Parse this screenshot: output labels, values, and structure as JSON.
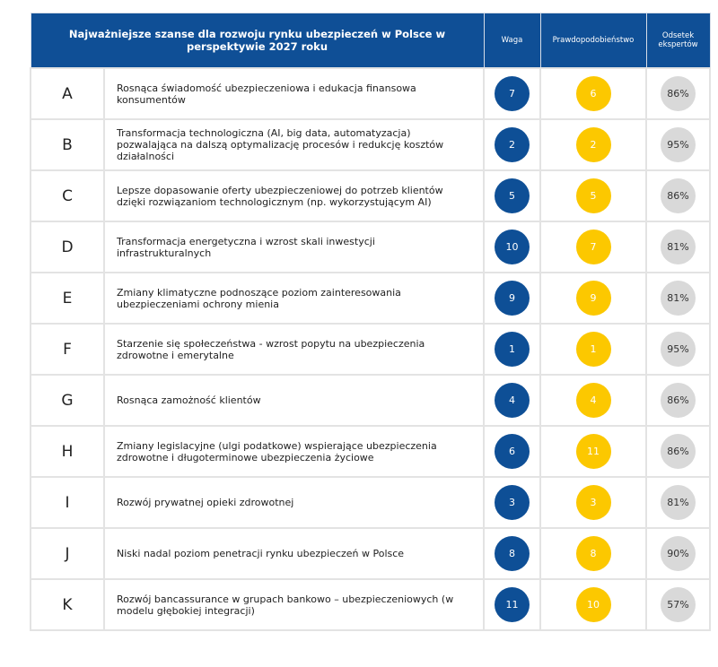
{
  "header": {
    "title": "Najważniejsze szanse dla rozwoju rynku ubezpieczeń w Polsce w perspektywie 2027 roku",
    "waga": "Waga",
    "prob": "Prawdopodobieństwo",
    "odsetek": "Odsetek ekspertów"
  },
  "colors": {
    "header": "#0f4f96",
    "waga": "#0e4f96",
    "prob": "#fcc800",
    "odsetek": "#d9d9d9"
  },
  "rows": [
    {
      "letter": "A",
      "text": "Rosnąca świadomość ubezpieczeniowa i edukacja finansowa konsumentów",
      "waga": "7",
      "prob": "6",
      "pct": "86%"
    },
    {
      "letter": "B",
      "text": "Transformacja technologiczna (AI, big data, automatyzacja) pozwalająca na dalszą optymalizację procesów i redukcję kosztów działalności",
      "waga": "2",
      "prob": "2",
      "pct": "95%"
    },
    {
      "letter": "C",
      "text": "Lepsze dopasowanie oferty ubezpieczeniowej do potrzeb klientów dzięki rozwiązaniom technologicznym (np. wykorzystującym AI)",
      "waga": "5",
      "prob": "5",
      "pct": "86%"
    },
    {
      "letter": "D",
      "text": "Transformacja energetyczna i wzrost skali inwestycji infrastrukturalnych",
      "waga": "10",
      "prob": "7",
      "pct": "81%"
    },
    {
      "letter": "E",
      "text": "Zmiany klimatyczne podnoszące poziom zainteresowania ubezpieczeniami ochrony mienia",
      "waga": "9",
      "prob": "9",
      "pct": "81%"
    },
    {
      "letter": "F",
      "text": "Starzenie się społeczeństwa - wzrost popytu na ubezpieczenia zdrowotne i emerytalne",
      "waga": "1",
      "prob": "1",
      "pct": "95%"
    },
    {
      "letter": "G",
      "text": "Rosnąca zamożność klientów",
      "waga": "4",
      "prob": "4",
      "pct": "86%"
    },
    {
      "letter": "H",
      "text": "Zmiany legislacyjne (ulgi podatkowe) wspierające ubezpieczenia zdrowotne i długoterminowe ubezpieczenia życiowe",
      "waga": "6",
      "prob": "11",
      "pct": "86%"
    },
    {
      "letter": "I",
      "text": "Rozwój prywatnej opieki zdrowotnej",
      "waga": "3",
      "prob": "3",
      "pct": "81%"
    },
    {
      "letter": "J",
      "text": "Niski nadal poziom penetracji rynku ubezpieczeń w Polsce",
      "waga": "8",
      "prob": "8",
      "pct": "90%"
    },
    {
      "letter": "K",
      "text": "Rozwój bancassurance w grupach bankowo – ubezpieczeniowych (w modelu głębokiej integracji)",
      "waga": "11",
      "prob": "10",
      "pct": "57%"
    }
  ]
}
